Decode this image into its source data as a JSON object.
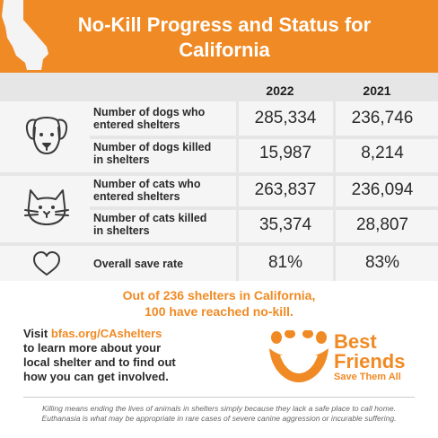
{
  "header": {
    "title_line1": "No-Kill Progress and Status for",
    "title_line2": "California",
    "background_color": "#f08a24",
    "state_icon": "california-outline-icon"
  },
  "table": {
    "years": [
      "2022",
      "2021"
    ],
    "rows": [
      {
        "icon": "dog-icon",
        "label_line1": "Number of dogs who",
        "label_line2": "entered shelters",
        "v2022": "285,334",
        "v2021": "236,746"
      },
      {
        "icon": "",
        "label_line1": "Number of dogs killed",
        "label_line2": "in shelters",
        "v2022": "15,987",
        "v2021": "8,214"
      },
      {
        "icon": "cat-icon",
        "label_line1": "Number of cats who",
        "label_line2": "entered shelters",
        "v2022": "263,837",
        "v2021": "236,094"
      },
      {
        "icon": "",
        "label_line1": "Number of cats killed",
        "label_line2": "in shelters",
        "v2022": "35,374",
        "v2021": "28,807"
      },
      {
        "icon": "heart-icon",
        "label_line1": "Overall save rate",
        "label_line2": "",
        "v2022": "81%",
        "v2021": "83%"
      }
    ]
  },
  "summary": {
    "line1": "Out of 236 shelters in California,",
    "line2": "100 have reached no-kill."
  },
  "cta": {
    "visit_word": "Visit ",
    "link_text": "bfas.org/CAshelters",
    "line2": "to learn more about your",
    "line3": "local shelter and to find out",
    "line4": "how you can get involved."
  },
  "logo": {
    "line1": "Best",
    "line2": "Friends",
    "tagline": "Save Them All",
    "mark": "best-friends-halo-logo",
    "color": "#f08a24"
  },
  "disclaimer": {
    "line1": "Killing means ending the lives of animals in shelters simply because they lack a safe place to call home.",
    "line2": "Euthanasia is what may be appropriate in rare cases of severe canine aggression or incurable suffering."
  }
}
